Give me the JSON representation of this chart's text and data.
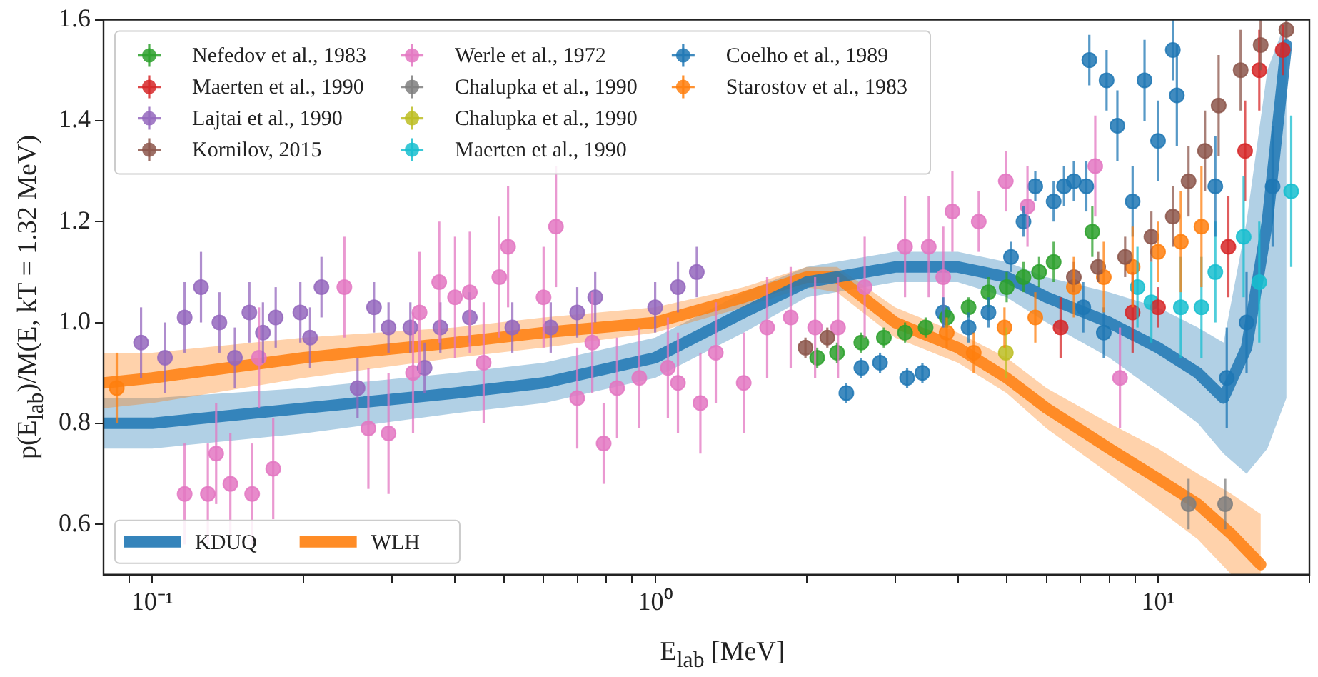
{
  "chart_data": {
    "type": "scatter",
    "xlabel": "E$_{lab}$ [MeV]",
    "ylabel": "p(E$_{lab}$)/M(E, kT = 1.32 MeV)",
    "log": "x",
    "legend": "left",
    "marker": "circle",
    "xlim": [
      0.08,
      20
    ],
    "ylim": [
      0.5,
      1.6
    ],
    "xticks": [
      {
        "value": 0.09,
        "label": null
      },
      {
        "value": 0.1,
        "label": "10⁻¹"
      },
      {
        "value": 0.2,
        "label": null
      },
      {
        "value": 0.3,
        "label": null
      },
      {
        "value": 0.4,
        "label": null
      },
      {
        "value": 0.5,
        "label": null
      },
      {
        "value": 0.6,
        "label": null
      },
      {
        "value": 0.7,
        "label": null
      },
      {
        "value": 0.8,
        "label": null
      },
      {
        "value": 0.9,
        "label": null
      },
      {
        "value": 1,
        "label": "10⁰"
      },
      {
        "value": 2,
        "label": null
      },
      {
        "value": 3,
        "label": null
      },
      {
        "value": 4,
        "label": null
      },
      {
        "value": 5,
        "label": null
      },
      {
        "value": 6,
        "label": null
      },
      {
        "value": 7,
        "label": null
      },
      {
        "value": 8,
        "label": null
      },
      {
        "value": 9,
        "label": null
      },
      {
        "value": 10,
        "label": "10¹"
      },
      {
        "value": 20,
        "label": null
      }
    ],
    "yticks": [
      0.6,
      0.8,
      {
        "value": 1,
        "label": "1.0"
      },
      1.2,
      1.4,
      1.6
    ],
    "series": [
      {
        "name": "Nefedov et al., 1983",
        "color": "#2ca02c",
        "x": [
          2.1,
          2.3,
          2.57,
          2.85,
          3.14,
          3.45,
          3.8,
          4.2,
          4.6,
          5.0,
          5.4,
          5.8,
          6.2,
          7.4
        ],
        "values": [
          0.93,
          0.94,
          0.96,
          0.97,
          0.98,
          0.99,
          1.01,
          1.03,
          1.06,
          1.07,
          1.09,
          1.1,
          1.12,
          1.18
        ],
        "errors": [
          0.02,
          0.02,
          0.02,
          0.02,
          0.02,
          0.02,
          0.02,
          0.02,
          0.03,
          0.03,
          0.03,
          0.03,
          0.04,
          0.05
        ]
      },
      {
        "name": "Maerten et al., 1990",
        "color": "#d62728",
        "x": [
          6.4,
          8.9,
          10.0,
          13.8,
          14.9,
          15.9,
          17.7
        ],
        "values": [
          0.99,
          1.02,
          1.03,
          1.15,
          1.34,
          1.5,
          1.54
        ],
        "errors": [
          0.06,
          0.08,
          0.04,
          0.1,
          0.1,
          0.08,
          0.05
        ]
      },
      {
        "name": "Lajtai et al., 1990",
        "color": "#9467bd",
        "x": [
          0.095,
          0.106,
          0.116,
          0.125,
          0.136,
          0.146,
          0.156,
          0.166,
          0.176,
          0.197,
          0.206,
          0.217,
          0.256,
          0.276,
          0.295,
          0.326,
          0.348,
          0.374,
          0.428,
          0.52,
          0.62,
          0.7,
          0.76,
          1.0,
          1.11,
          1.21
        ],
        "values": [
          0.96,
          0.93,
          1.01,
          1.07,
          1.0,
          0.93,
          1.02,
          0.98,
          1.01,
          1.02,
          0.97,
          1.07,
          0.87,
          1.03,
          0.99,
          0.99,
          0.91,
          0.99,
          1.01,
          0.99,
          0.99,
          1.02,
          1.05,
          1.03,
          1.07,
          1.1
        ],
        "errors": [
          0.07,
          0.07,
          0.07,
          0.07,
          0.06,
          0.06,
          0.06,
          0.06,
          0.06,
          0.06,
          0.06,
          0.06,
          0.06,
          0.05,
          0.05,
          0.05,
          0.05,
          0.05,
          0.05,
          0.05,
          0.05,
          0.05,
          0.05,
          0.05,
          0.05,
          0.05
        ]
      },
      {
        "name": "Kornilov, 2015",
        "color": "#8c564b",
        "x": [
          1.99,
          2.2,
          6.8,
          7.6,
          8.6,
          9.7,
          10.7,
          11.5,
          12.4,
          13.2,
          14.6,
          16.0,
          18.0
        ],
        "values": [
          0.95,
          0.97,
          1.09,
          1.11,
          1.13,
          1.17,
          1.21,
          1.28,
          1.34,
          1.43,
          1.5,
          1.55,
          1.58
        ],
        "errors": [
          0.02,
          0.02,
          0.03,
          0.03,
          0.04,
          0.05,
          0.06,
          0.07,
          0.08,
          0.1,
          0.08,
          0.05,
          0.02
        ]
      },
      {
        "name": "Werle et al., 1972",
        "color": "#e377c2",
        "x": [
          0.116,
          0.129,
          0.134,
          0.143,
          0.158,
          0.163,
          0.174,
          0.241,
          0.269,
          0.295,
          0.33,
          0.34,
          0.372,
          0.4,
          0.428,
          0.456,
          0.49,
          0.51,
          0.6,
          0.635,
          0.7,
          0.75,
          0.79,
          0.84,
          0.93,
          1.06,
          1.11,
          1.23,
          1.32,
          1.5,
          1.67,
          1.86,
          2.08,
          2.31,
          2.61,
          3.14,
          3.5,
          3.74,
          3.9,
          4.4,
          4.98,
          5.5,
          7.5,
          8.4
        ],
        "values": [
          0.66,
          0.66,
          0.74,
          0.68,
          0.66,
          0.93,
          0.71,
          1.07,
          0.79,
          0.78,
          0.9,
          1.02,
          1.08,
          1.05,
          1.06,
          0.92,
          1.09,
          1.15,
          1.05,
          1.19,
          0.85,
          0.96,
          0.76,
          0.87,
          0.89,
          0.91,
          0.88,
          0.84,
          0.94,
          0.88,
          0.99,
          1.01,
          0.99,
          0.99,
          1.07,
          1.15,
          1.15,
          1.09,
          1.22,
          1.2,
          1.28,
          1.23,
          1.31,
          0.89
        ],
        "errors": [
          0.1,
          0.1,
          0.1,
          0.1,
          0.1,
          0.1,
          0.1,
          0.1,
          0.12,
          0.12,
          0.12,
          0.12,
          0.12,
          0.12,
          0.12,
          0.12,
          0.12,
          0.12,
          0.1,
          0.12,
          0.1,
          0.1,
          0.08,
          0.1,
          0.1,
          0.1,
          0.1,
          0.1,
          0.1,
          0.1,
          0.1,
          0.1,
          0.1,
          0.1,
          0.1,
          0.1,
          0.1,
          0.1,
          0.08,
          0.06,
          0.06,
          0.08,
          0.1,
          0.1
        ]
      },
      {
        "name": "Chalupka et al., 1990",
        "color": "#7f7f7f",
        "x": [
          11.5,
          13.6
        ],
        "values": [
          0.64,
          0.64
        ],
        "errors": [
          0.05,
          0.05
        ]
      },
      {
        "name": "Chalupka et al., 1990",
        "color": "#bcbd22",
        "x": [
          4.98
        ],
        "values": [
          0.94
        ],
        "errors": [
          0.05
        ]
      },
      {
        "name": "Maerten et al., 1990",
        "color": "#17becf",
        "x": [
          9.1,
          9.7,
          11.1,
          12.2,
          13.0,
          14.8,
          15.9,
          18.4
        ],
        "values": [
          1.07,
          1.04,
          1.03,
          1.03,
          1.1,
          1.17,
          1.08,
          1.26
        ],
        "errors": [
          0.08,
          0.08,
          0.1,
          0.1,
          0.1,
          0.12,
          0.12,
          0.15
        ]
      },
      {
        "name": "Coelho et al., 1989",
        "color": "#1f77b4",
        "x": [
          2.4,
          2.57,
          2.8,
          3.17,
          3.4,
          3.74,
          4.2,
          4.6,
          5.1,
          5.4,
          5.7,
          6.2,
          6.5,
          6.8,
          7.1,
          7.2,
          7.3,
          7.8,
          7.9,
          8.3,
          8.9,
          9.4,
          10.0,
          10.7,
          10.9,
          13.0,
          13.7,
          15.0,
          16.9
        ],
        "values": [
          0.86,
          0.91,
          0.92,
          0.89,
          0.9,
          1.02,
          0.99,
          1.02,
          1.13,
          1.2,
          1.27,
          1.24,
          1.27,
          1.28,
          1.03,
          1.27,
          1.52,
          0.98,
          1.48,
          1.39,
          1.24,
          1.48,
          1.36,
          1.54,
          1.45,
          1.27,
          0.89,
          1.0,
          1.27
        ],
        "errors": [
          0.02,
          0.02,
          0.02,
          0.02,
          0.02,
          0.03,
          0.03,
          0.03,
          0.03,
          0.03,
          0.03,
          0.04,
          0.04,
          0.04,
          0.05,
          0.05,
          0.05,
          0.05,
          0.06,
          0.07,
          0.07,
          0.08,
          0.08,
          0.06,
          0.1,
          0.1,
          0.1,
          0.1,
          0.12
        ]
      },
      {
        "name": "Starostov et al., 1983",
        "color": "#ff7f0e",
        "x": [
          0.085,
          3.8,
          4.3,
          4.95,
          5.7,
          6.8,
          7.8,
          8.9,
          10.0,
          11.1,
          12.2
        ],
        "values": [
          0.87,
          0.98,
          0.94,
          0.99,
          1.01,
          1.07,
          1.09,
          1.11,
          1.14,
          1.16,
          1.19
        ],
        "errors": [
          0.07,
          0.03,
          0.04,
          0.04,
          0.05,
          0.06,
          0.07,
          0.08,
          0.06,
          0.1,
          0.12
        ]
      },
      {
        "name": "KDUQ",
        "type": "line",
        "marker": "none",
        "color": "#1f77b4",
        "x": [
          0.08,
          0.1,
          0.2,
          0.4,
          0.6,
          1.0,
          1.5,
          2.0,
          3.0,
          4.0,
          5.0,
          6.0,
          8.0,
          10.0,
          12.0,
          13.5,
          15.0,
          16.5,
          18.0
        ],
        "values": [
          0.8,
          0.8,
          0.83,
          0.86,
          0.88,
          0.93,
          1.02,
          1.08,
          1.11,
          1.11,
          1.09,
          1.05,
          1.0,
          0.95,
          0.9,
          0.85,
          0.95,
          1.2,
          1.55
        ],
        "lower": [
          0.75,
          0.75,
          0.78,
          0.82,
          0.84,
          0.89,
          0.98,
          1.05,
          1.08,
          1.08,
          1.05,
          1.0,
          0.93,
          0.86,
          0.8,
          0.74,
          0.7,
          0.75,
          0.85
        ],
        "upper": [
          0.85,
          0.85,
          0.87,
          0.9,
          0.92,
          0.97,
          1.06,
          1.11,
          1.14,
          1.14,
          1.12,
          1.09,
          1.06,
          1.03,
          0.99,
          0.96,
          1.2,
          1.5,
          1.6
        ]
      },
      {
        "name": "WLH",
        "type": "line",
        "marker": "none",
        "color": "#ff7f0e",
        "x": [
          0.08,
          0.1,
          0.2,
          0.4,
          0.6,
          1.0,
          1.5,
          2.0,
          2.3,
          3.0,
          4.0,
          5.0,
          6.0,
          8.0,
          10.0,
          12.0,
          14.0,
          16.0
        ],
        "values": [
          0.88,
          0.89,
          0.93,
          0.96,
          0.98,
          1.0,
          1.05,
          1.09,
          1.09,
          1.0,
          0.95,
          0.89,
          0.83,
          0.75,
          0.69,
          0.64,
          0.58,
          0.52
        ],
        "lower": [
          0.83,
          0.84,
          0.89,
          0.93,
          0.95,
          0.98,
          1.03,
          1.07,
          1.06,
          0.97,
          0.92,
          0.86,
          0.79,
          0.7,
          0.63,
          0.57,
          0.5,
          0.5
        ],
        "upper": [
          0.94,
          0.94,
          0.97,
          0.99,
          1.01,
          1.03,
          1.07,
          1.11,
          1.11,
          1.03,
          0.98,
          0.93,
          0.87,
          0.8,
          0.75,
          0.7,
          0.66,
          0.62
        ]
      }
    ]
  }
}
